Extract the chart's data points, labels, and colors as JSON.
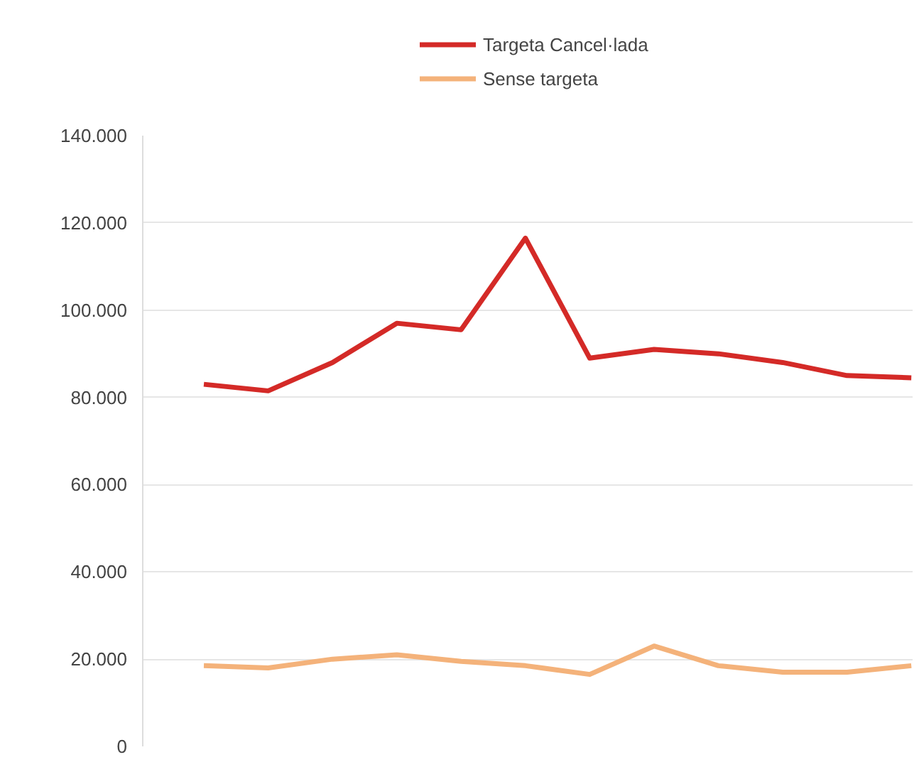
{
  "chart_data": {
    "type": "line",
    "categories": [
      null,
      null,
      null,
      null,
      null,
      null,
      null,
      null,
      null,
      null,
      null,
      null
    ],
    "series": [
      {
        "name": "Targeta Cancel·lada",
        "color": "#d42a27",
        "values": [
          83000,
          81500,
          88000,
          97000,
          95500,
          116500,
          89000,
          91000,
          90000,
          88000,
          85000,
          84500
        ]
      },
      {
        "name": "Sense targeta",
        "color": "#f4b27a",
        "values": [
          18500,
          18000,
          20000,
          21000,
          19500,
          18500,
          16500,
          23000,
          18500,
          17000,
          17000,
          18500
        ]
      }
    ],
    "ylim": [
      0,
      140000
    ],
    "yticks": [
      {
        "value": 0,
        "label": "0"
      },
      {
        "value": 20000,
        "label": "20.000"
      },
      {
        "value": 40000,
        "label": "40.000"
      },
      {
        "value": 60000,
        "label": "60.000"
      },
      {
        "value": 80000,
        "label": "80.000"
      },
      {
        "value": 100000,
        "label": "100.000"
      },
      {
        "value": 120000,
        "label": "120.000"
      },
      {
        "value": 140000,
        "label": "140.000"
      }
    ],
    "grid": "y",
    "legend": "top",
    "tick_labels": "y",
    "marker": "none",
    "line_style": "solid"
  }
}
